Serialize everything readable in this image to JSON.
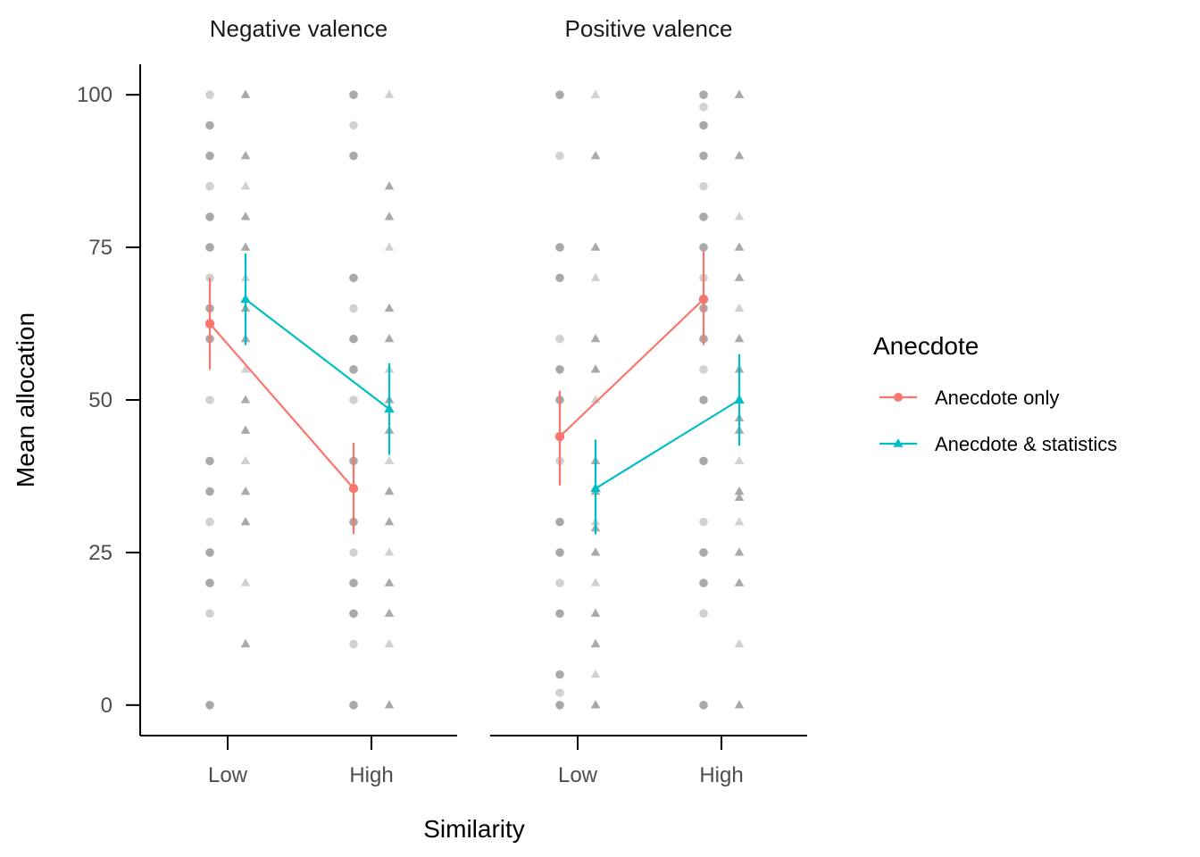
{
  "chart_data": {
    "type": "line",
    "facet_by": "valence",
    "panels": [
      {
        "title": "Negative valence",
        "categories": [
          "Low",
          "High"
        ],
        "series": [
          {
            "name": "Anecdote only",
            "means": [
              62.5,
              35.5
            ],
            "ci_low": [
              55,
              28
            ],
            "ci_high": [
              70,
              43
            ],
            "raw_points": [
              [
                0,
                15,
                20,
                25,
                30,
                35,
                40,
                50,
                60,
                65,
                70,
                75,
                80,
                85,
                90,
                95,
                100
              ],
              [
                0,
                10,
                15,
                20,
                25,
                30,
                40,
                50,
                55,
                60,
                65,
                70,
                90,
                95,
                100
              ]
            ]
          },
          {
            "name": "Anecdote & statistics",
            "means": [
              66.5,
              48.5
            ],
            "ci_low": [
              59,
              41
            ],
            "ci_high": [
              74,
              56
            ],
            "raw_points": [
              [
                10,
                20,
                30,
                35,
                40,
                45,
                50,
                55,
                60,
                65,
                70,
                75,
                80,
                85,
                90,
                100
              ],
              [
                0,
                10,
                15,
                20,
                25,
                30,
                35,
                40,
                45,
                50,
                55,
                60,
                65,
                75,
                80,
                85,
                100
              ]
            ]
          }
        ]
      },
      {
        "title": "Positive valence",
        "categories": [
          "Low",
          "High"
        ],
        "series": [
          {
            "name": "Anecdote only",
            "means": [
              44,
              66.5
            ],
            "ci_low": [
              36,
              59
            ],
            "ci_high": [
              51.5,
              74.5
            ],
            "raw_points": [
              [
                0,
                2,
                5,
                15,
                20,
                25,
                30,
                40,
                50,
                55,
                60,
                70,
                75,
                90,
                100
              ],
              [
                0,
                15,
                20,
                25,
                30,
                40,
                50,
                55,
                60,
                65,
                70,
                75,
                80,
                85,
                90,
                95,
                98,
                100
              ]
            ]
          },
          {
            "name": "Anecdote & statistics",
            "means": [
              35.5,
              50
            ],
            "ci_low": [
              28,
              42.5
            ],
            "ci_high": [
              43.5,
              57.5
            ],
            "raw_points": [
              [
                0,
                5,
                10,
                15,
                20,
                25,
                29,
                30,
                35,
                40,
                50,
                55,
                60,
                70,
                75,
                90,
                100
              ],
              [
                0,
                10,
                20,
                25,
                30,
                34,
                35,
                40,
                45,
                47,
                50,
                55,
                60,
                65,
                70,
                75,
                80,
                90,
                100
              ]
            ]
          }
        ]
      }
    ],
    "xlabel": "Similarity",
    "ylabel": "Mean allocation",
    "ylim": [
      -5,
      105
    ],
    "yticks": [
      0,
      25,
      50,
      75,
      100
    ],
    "legend": {
      "title": "Anecdote",
      "position": "right",
      "entries": [
        {
          "name": "Anecdote only",
          "color": "#F8766D",
          "shape": "circle"
        },
        {
          "name": "Anecdote & statistics",
          "color": "#00BFC4",
          "shape": "triangle"
        }
      ]
    },
    "colors": {
      "Anecdote only": "#F8766D",
      "Anecdote & statistics": "#00BFC4",
      "raw_point": "#9a9a9a",
      "axis": "#000000"
    },
    "grid": false
  }
}
